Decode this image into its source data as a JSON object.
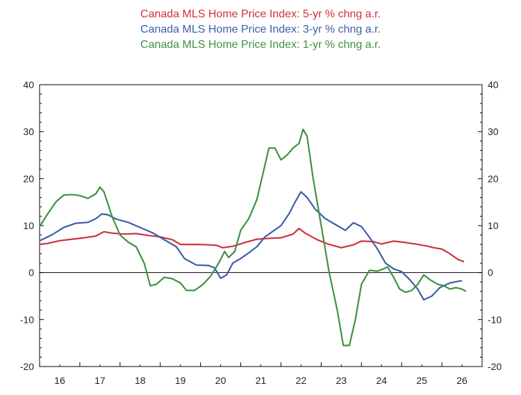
{
  "chart_data": {
    "type": "line",
    "legend_position": "top-center",
    "grid": false,
    "ylim": [
      -20,
      40
    ],
    "yticks": [
      -20,
      -10,
      0,
      10,
      20,
      30,
      40
    ],
    "xlim": [
      2015.5,
      2026.5
    ],
    "xticks": [
      {
        "label": "16",
        "x": 2016.0
      },
      {
        "label": "17",
        "x": 2017.0
      },
      {
        "label": "18",
        "x": 2018.0
      },
      {
        "label": "19",
        "x": 2019.0
      },
      {
        "label": "20",
        "x": 2020.0
      },
      {
        "label": "21",
        "x": 2021.0
      },
      {
        "label": "22",
        "x": 2022.0
      },
      {
        "label": "23",
        "x": 2023.0
      },
      {
        "label": "24",
        "x": 2024.0
      },
      {
        "label": "25",
        "x": 2025.0
      },
      {
        "label": "26",
        "x": 2026.0
      }
    ],
    "zero_line": true,
    "series": [
      {
        "name": "Canada MLS Home Price Index: 5-yr % chng a.r.",
        "color": "#d0303f",
        "points": [
          [
            2015.5,
            6.0
          ],
          [
            2015.7,
            6.2
          ],
          [
            2016.0,
            6.8
          ],
          [
            2016.3,
            7.1
          ],
          [
            2016.6,
            7.4
          ],
          [
            2016.9,
            7.8
          ],
          [
            2017.1,
            8.7
          ],
          [
            2017.3,
            8.4
          ],
          [
            2017.6,
            8.2
          ],
          [
            2017.9,
            8.3
          ],
          [
            2018.2,
            7.9
          ],
          [
            2018.5,
            7.6
          ],
          [
            2018.8,
            7.0
          ],
          [
            2019.0,
            6.0
          ],
          [
            2019.4,
            6.0
          ],
          [
            2019.7,
            5.9
          ],
          [
            2019.9,
            5.8
          ],
          [
            2020.05,
            5.3
          ],
          [
            2020.3,
            5.6
          ],
          [
            2020.6,
            6.4
          ],
          [
            2020.9,
            7.1
          ],
          [
            2021.2,
            7.3
          ],
          [
            2021.5,
            7.4
          ],
          [
            2021.8,
            8.2
          ],
          [
            2021.95,
            9.4
          ],
          [
            2022.1,
            8.4
          ],
          [
            2022.4,
            7.0
          ],
          [
            2022.7,
            6.0
          ],
          [
            2023.0,
            5.3
          ],
          [
            2023.3,
            5.9
          ],
          [
            2023.5,
            6.7
          ],
          [
            2023.8,
            6.6
          ],
          [
            2024.0,
            6.1
          ],
          [
            2024.3,
            6.7
          ],
          [
            2024.6,
            6.4
          ],
          [
            2024.9,
            6.0
          ],
          [
            2025.1,
            5.7
          ],
          [
            2025.3,
            5.3
          ],
          [
            2025.5,
            5.0
          ],
          [
            2025.7,
            4.0
          ],
          [
            2025.9,
            2.8
          ],
          [
            2026.05,
            2.3
          ]
        ]
      },
      {
        "name": "Canada MLS Home Price Index: 3-yr % chng a.r.",
        "color": "#3a5ea8",
        "points": [
          [
            2015.5,
            6.8
          ],
          [
            2015.8,
            8.0
          ],
          [
            2016.1,
            9.6
          ],
          [
            2016.4,
            10.5
          ],
          [
            2016.7,
            10.7
          ],
          [
            2016.9,
            11.5
          ],
          [
            2017.05,
            12.5
          ],
          [
            2017.2,
            12.3
          ],
          [
            2017.4,
            11.4
          ],
          [
            2017.7,
            10.7
          ],
          [
            2018.0,
            9.6
          ],
          [
            2018.3,
            8.5
          ],
          [
            2018.6,
            7.0
          ],
          [
            2018.9,
            5.5
          ],
          [
            2019.1,
            3.0
          ],
          [
            2019.4,
            1.6
          ],
          [
            2019.7,
            1.5
          ],
          [
            2019.85,
            1.0
          ],
          [
            2020.0,
            -1.2
          ],
          [
            2020.15,
            -0.5
          ],
          [
            2020.3,
            2.0
          ],
          [
            2020.5,
            3.0
          ],
          [
            2020.7,
            4.2
          ],
          [
            2020.9,
            5.5
          ],
          [
            2021.1,
            7.6
          ],
          [
            2021.3,
            8.8
          ],
          [
            2021.5,
            10.0
          ],
          [
            2021.7,
            12.5
          ],
          [
            2021.85,
            15.0
          ],
          [
            2022.0,
            17.2
          ],
          [
            2022.15,
            16.0
          ],
          [
            2022.35,
            13.5
          ],
          [
            2022.6,
            11.5
          ],
          [
            2022.9,
            10.0
          ],
          [
            2023.1,
            9.0
          ],
          [
            2023.3,
            10.6
          ],
          [
            2023.5,
            9.8
          ],
          [
            2023.7,
            7.5
          ],
          [
            2023.9,
            5.0
          ],
          [
            2024.1,
            2.0
          ],
          [
            2024.3,
            0.8
          ],
          [
            2024.5,
            0.2
          ],
          [
            2024.7,
            -1.5
          ],
          [
            2024.9,
            -3.5
          ],
          [
            2025.05,
            -5.8
          ],
          [
            2025.25,
            -5.0
          ],
          [
            2025.45,
            -3.2
          ],
          [
            2025.7,
            -2.2
          ],
          [
            2026.0,
            -1.7
          ]
        ]
      },
      {
        "name": "Canada MLS Home Price Index: 1-yr % chng a.r.",
        "color": "#3f9140",
        "points": [
          [
            2015.5,
            9.8
          ],
          [
            2015.7,
            12.5
          ],
          [
            2015.9,
            15.0
          ],
          [
            2016.1,
            16.5
          ],
          [
            2016.3,
            16.6
          ],
          [
            2016.5,
            16.4
          ],
          [
            2016.7,
            15.8
          ],
          [
            2016.9,
            16.8
          ],
          [
            2017.0,
            18.2
          ],
          [
            2017.1,
            17.2
          ],
          [
            2017.3,
            12.0
          ],
          [
            2017.5,
            8.0
          ],
          [
            2017.7,
            6.5
          ],
          [
            2017.9,
            5.5
          ],
          [
            2018.1,
            2.0
          ],
          [
            2018.25,
            -2.8
          ],
          [
            2018.4,
            -2.5
          ],
          [
            2018.6,
            -1.0
          ],
          [
            2018.8,
            -1.3
          ],
          [
            2019.0,
            -2.2
          ],
          [
            2019.15,
            -3.8
          ],
          [
            2019.35,
            -3.8
          ],
          [
            2019.55,
            -2.6
          ],
          [
            2019.75,
            -0.8
          ],
          [
            2019.95,
            2.0
          ],
          [
            2020.1,
            4.5
          ],
          [
            2020.2,
            3.2
          ],
          [
            2020.35,
            4.5
          ],
          [
            2020.5,
            9.0
          ],
          [
            2020.7,
            11.5
          ],
          [
            2020.9,
            15.5
          ],
          [
            2021.05,
            21.0
          ],
          [
            2021.2,
            26.5
          ],
          [
            2021.35,
            26.5
          ],
          [
            2021.5,
            24.0
          ],
          [
            2021.65,
            25.0
          ],
          [
            2021.8,
            26.5
          ],
          [
            2021.95,
            27.5
          ],
          [
            2022.05,
            30.5
          ],
          [
            2022.15,
            29.0
          ],
          [
            2022.3,
            20.0
          ],
          [
            2022.5,
            10.0
          ],
          [
            2022.7,
            0.0
          ],
          [
            2022.9,
            -8.0
          ],
          [
            2023.05,
            -15.5
          ],
          [
            2023.2,
            -15.5
          ],
          [
            2023.35,
            -10.0
          ],
          [
            2023.5,
            -2.5
          ],
          [
            2023.7,
            0.5
          ],
          [
            2023.9,
            0.3
          ],
          [
            2024.05,
            0.8
          ],
          [
            2024.15,
            1.2
          ],
          [
            2024.3,
            -1.0
          ],
          [
            2024.45,
            -3.5
          ],
          [
            2024.6,
            -4.2
          ],
          [
            2024.75,
            -3.8
          ],
          [
            2024.9,
            -2.5
          ],
          [
            2025.05,
            -0.5
          ],
          [
            2025.2,
            -1.5
          ],
          [
            2025.4,
            -2.5
          ],
          [
            2025.55,
            -2.8
          ],
          [
            2025.7,
            -3.5
          ],
          [
            2025.85,
            -3.2
          ],
          [
            2026.0,
            -3.5
          ],
          [
            2026.1,
            -4.0
          ]
        ]
      }
    ]
  }
}
